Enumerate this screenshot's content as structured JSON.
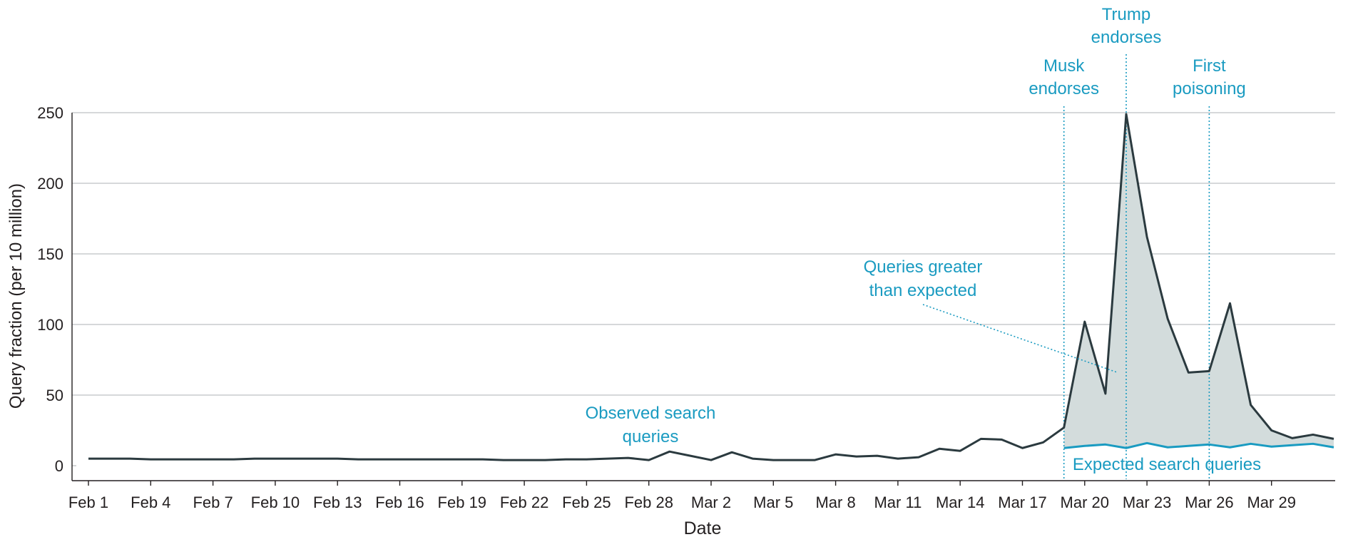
{
  "chart_data": {
    "type": "line",
    "xlabel": "Date",
    "ylabel": "Query fraction (per 10 million)",
    "ylim": [
      0,
      250
    ],
    "yticks": [
      0,
      50,
      100,
      150,
      200,
      250
    ],
    "grid": "horizontal",
    "x_tick_labels": [
      "Feb 1",
      "Feb 4",
      "Feb 7",
      "Feb 10",
      "Feb 13",
      "Feb 16",
      "Feb 19",
      "Feb 22",
      "Feb 25",
      "Feb 28",
      "Mar 2",
      "Mar 5",
      "Mar 8",
      "Mar 11",
      "Mar 14",
      "Mar 17",
      "Mar 20",
      "Mar 23",
      "Mar 26",
      "Mar 29"
    ],
    "series": [
      {
        "name": "Observed search queries",
        "color": "#2b3a3f",
        "values": [
          5,
          5,
          5,
          4.5,
          4.5,
          4.5,
          4.5,
          4.5,
          5,
          5,
          5,
          5,
          5,
          4.5,
          4.5,
          4.5,
          4.5,
          4.5,
          4.5,
          4.5,
          4,
          4,
          4,
          4.5,
          4.5,
          5,
          5.5,
          4,
          10,
          7,
          4,
          9.5,
          5,
          4,
          4,
          4,
          8,
          6.5,
          7,
          5,
          6,
          12,
          10.5,
          19,
          18.5,
          12.5,
          16.5,
          27,
          102,
          51,
          249,
          162,
          104,
          66,
          67,
          115,
          43,
          25,
          19.5,
          22,
          19
        ]
      },
      {
        "name": "Expected search queries",
        "color": "#1a9bc1",
        "start_index": 47,
        "values": [
          12.5,
          14,
          15,
          12.5,
          16,
          13,
          14,
          15,
          13,
          15.5,
          13.5,
          14.5,
          15.5,
          13
        ]
      }
    ],
    "fill_between": {
      "label": "Queries greater than expected",
      "color": "#d3dcdc",
      "start_index": 47,
      "end_index": 60
    },
    "annotations": [
      {
        "lines": [
          "Musk",
          "endorses"
        ],
        "x_index": 47
      },
      {
        "lines": [
          "Trump",
          "endorses"
        ],
        "x_index": 50
      },
      {
        "lines": [
          "First",
          "poisoning"
        ],
        "x_index": 54
      }
    ],
    "labels": {
      "observed": [
        "Observed search",
        "queries"
      ],
      "expected": [
        "Expected search queries"
      ],
      "greater": [
        "Queries greater",
        "than expected"
      ]
    },
    "annotation_color": "#1a9bc1"
  }
}
